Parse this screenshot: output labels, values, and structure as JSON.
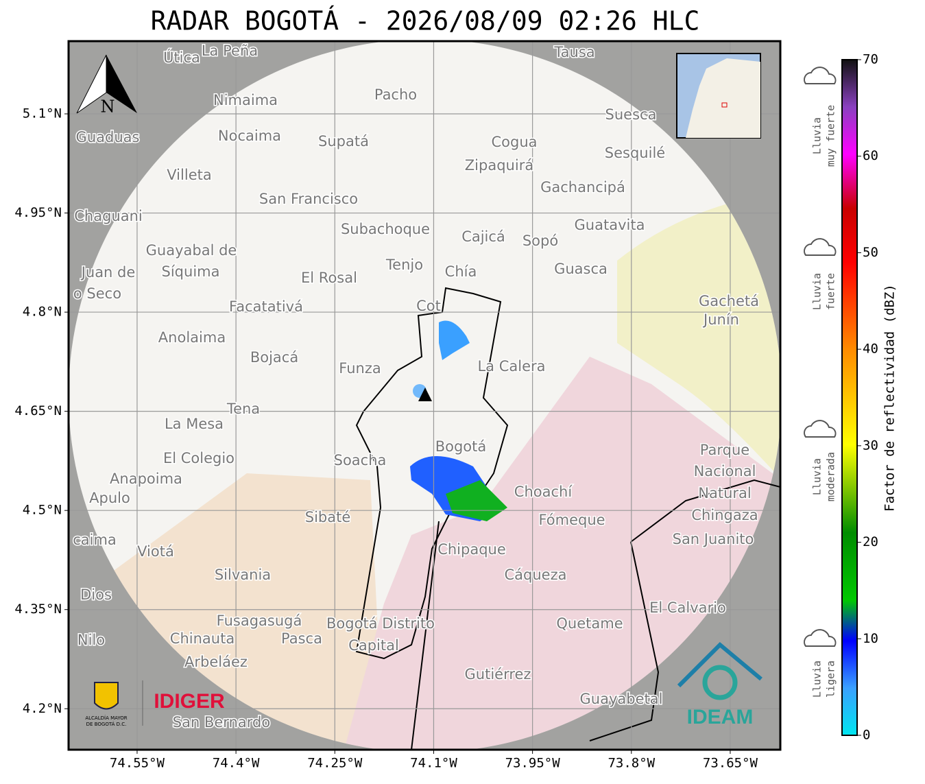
{
  "title": "RADAR BOGOTÁ - 2026/08/09 02:26 HLC",
  "map": {
    "xlim": [
      -74.654,
      -73.574
    ],
    "ylim": [
      4.138,
      5.21
    ],
    "xticks": [
      {
        "value": -74.55,
        "label": "74.55°W"
      },
      {
        "value": -74.4,
        "label": "74.4°W"
      },
      {
        "value": -74.25,
        "label": "74.25°W"
      },
      {
        "value": -74.1,
        "label": "74.1°W"
      },
      {
        "value": -73.95,
        "label": "73.95°W"
      },
      {
        "value": -73.8,
        "label": "73.8°W"
      },
      {
        "value": -73.65,
        "label": "73.65°W"
      }
    ],
    "yticks": [
      {
        "value": 5.1,
        "label": "5.1°N"
      },
      {
        "value": 4.95,
        "label": "4.95°N"
      },
      {
        "value": 4.8,
        "label": "4.8°N"
      },
      {
        "value": 4.65,
        "label": "4.65°N"
      },
      {
        "value": 4.5,
        "label": "4.5°N"
      },
      {
        "value": 4.35,
        "label": "4.35°N"
      },
      {
        "value": 4.2,
        "label": "4.2°N"
      }
    ],
    "north": "N",
    "places": [
      "La Peña",
      "Útica",
      "Tausa",
      "Pacho",
      "Nimaima",
      "Suesca",
      "Guaduas",
      "Nocaima",
      "Supatá",
      "Cogua",
      "Sesquilé",
      "Zipaquirá",
      "Villeta",
      "Gachancipá",
      "San Francisco",
      "Chaguani",
      "Guatavita",
      "Subachoque",
      "Cajicá",
      "Sopó",
      "Guayabal de",
      "Síquima",
      "Tenjo",
      "Chía",
      "Guasca",
      "Juan de",
      "El Rosal",
      "o Seco",
      "Facatativá",
      "Gachetá",
      "Junín",
      "Anolaima",
      "Bojacá",
      "Funza",
      "La Calera",
      "Tena",
      "La Mesa",
      "Bogotá",
      "Parque",
      "Nacional",
      "Natural",
      "Chingaza",
      "El Colegio",
      "Soacha",
      "Anapoima",
      "Apulo",
      "Choachí",
      "Fómeque",
      "Sibaté",
      "San Juanito",
      "caima",
      "Viotá",
      "Chipaque",
      "Cáqueza",
      "Silvania",
      "Dios",
      "El Calvario",
      "Fusagasugá",
      "Bogotá Distrito",
      "Quetame",
      "Nilo",
      "Chinauta",
      "Pasca",
      "Capital",
      "Arbeláez",
      "Gutiérrez",
      "Guayabetal",
      "San Bernardo",
      "Cot"
    ]
  },
  "colorbar": {
    "label": "Factor de reflectividad (dBZ)",
    "range": [
      0,
      70
    ],
    "ticks": [
      0,
      10,
      20,
      30,
      40,
      50,
      60,
      70
    ]
  },
  "legend": [
    [
      "Lluvia",
      "muy fuerte"
    ],
    [
      "Lluvia",
      "fuerte"
    ],
    [
      "Lluvia",
      "moderada"
    ],
    [
      "Lluvia",
      "ligera"
    ]
  ],
  "logos": {
    "alcaldia": [
      "ALCALDÍA MAYOR",
      "DE BOGOTÁ D.C."
    ],
    "idiger": "IDIGER",
    "ideam": "IDEAM"
  }
}
